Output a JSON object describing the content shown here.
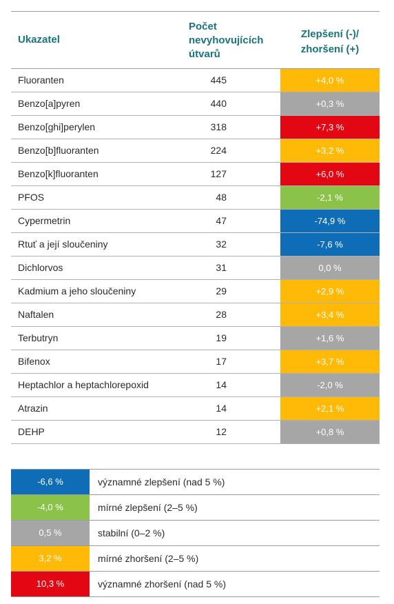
{
  "header": {
    "col1": "Ukazatel",
    "col2": "Počet\nnevyhovujících\nútvarů",
    "col3": "Zlepšení (-)/\nzhoršení (+)"
  },
  "colors": {
    "strong_improve": "#0f6db8",
    "mild_improve": "#8bc34a",
    "stable": "#a6a6a6",
    "mild_worse": "#ffba08",
    "strong_worse": "#e30613"
  },
  "rows": [
    {
      "name": "Fluoranten",
      "count": "445",
      "change": "+4,0 %",
      "status": "mild_worse"
    },
    {
      "name": "Benzo[a]pyren",
      "count": "440",
      "change": "+0,3 %",
      "status": "stable"
    },
    {
      "name": "Benzo[ghi]perylen",
      "count": "318",
      "change": "+7,3 %",
      "status": "strong_worse"
    },
    {
      "name": "Benzo[b]fluoranten",
      "count": "224",
      "change": "+3,2 %",
      "status": "mild_worse"
    },
    {
      "name": "Benzo[k]fluoranten",
      "count": "127",
      "change": "+6,0 %",
      "status": "strong_worse"
    },
    {
      "name": "PFOS",
      "count": "48",
      "change": "-2,1 %",
      "status": "mild_improve"
    },
    {
      "name": "Cypermetrin",
      "count": "47",
      "change": "-74,9 %",
      "status": "strong_improve"
    },
    {
      "name": "Rtuť a její sloučeniny",
      "count": "32",
      "change": "-7,6 %",
      "status": "strong_improve"
    },
    {
      "name": "Dichlorvos",
      "count": "31",
      "change": "0,0 %",
      "status": "stable"
    },
    {
      "name": "Kadmium a jeho sloučeniny",
      "count": "29",
      "change": "+2,9 %",
      "status": "mild_worse"
    },
    {
      "name": "Naftalen",
      "count": "28",
      "change": "+3,4 %",
      "status": "mild_worse"
    },
    {
      "name": "Terbutryn",
      "count": "19",
      "change": "+1,6 %",
      "status": "stable"
    },
    {
      "name": "Bifenox",
      "count": "17",
      "change": "+3,7 %",
      "status": "mild_worse"
    },
    {
      "name": "Heptachlor a heptachlorepoxid",
      "count": "14",
      "change": "-2,0 %",
      "status": "stable"
    },
    {
      "name": "Atrazin",
      "count": "14",
      "change": "+2,1 %",
      "status": "mild_worse"
    },
    {
      "name": "DEHP",
      "count": "12",
      "change": "+0,8 %",
      "status": "stable"
    }
  ],
  "legend": [
    {
      "value": "-6,6 %",
      "label": "významné zlepšení (nad 5 %)",
      "status": "strong_improve"
    },
    {
      "value": "-4,0 %",
      "label": "mírné zlepšení (2–5 %)",
      "status": "mild_improve"
    },
    {
      "value": "0,5 %",
      "label": "stabilní (0–2 %)",
      "status": "stable"
    },
    {
      "value": "3,2 %",
      "label": "mírné zhoršení (2–5 %)",
      "status": "mild_worse"
    },
    {
      "value": "10,3 %",
      "label": "významné zhoršení (nad 5 %)",
      "status": "strong_worse"
    }
  ]
}
